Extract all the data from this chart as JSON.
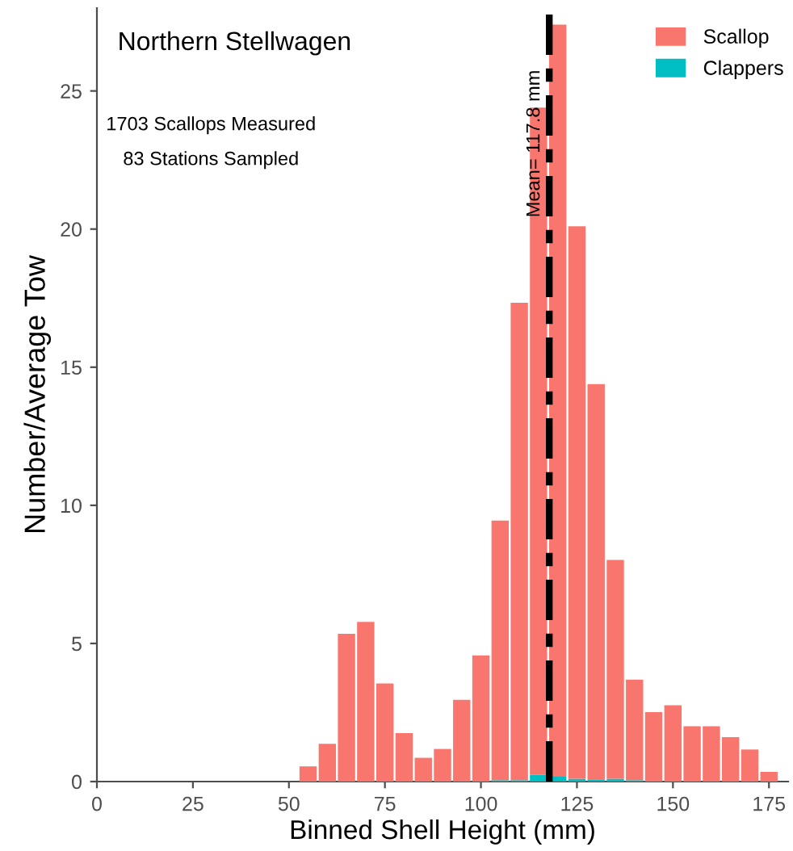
{
  "chart_data": {
    "type": "bar",
    "title": "Northern Stellwagen",
    "xlabel": "Binned Shell Height (mm)",
    "ylabel": "Number/Average Tow",
    "annotations": [
      "1703 Scallops Measured",
      "83 Stations Sampled"
    ],
    "x": [
      55,
      60,
      65,
      70,
      75,
      80,
      85,
      90,
      95,
      100,
      105,
      110,
      115,
      120,
      125,
      130,
      135,
      140,
      145,
      150,
      155,
      160,
      165,
      170,
      175
    ],
    "stacked": true,
    "series": [
      {
        "name": "Clappers",
        "color": "#00bfc4",
        "values": [
          0,
          0,
          0,
          0,
          0,
          0,
          0,
          0,
          0,
          0,
          0.05,
          0.05,
          0.25,
          0.2,
          0.1,
          0.08,
          0.1,
          0.05,
          0,
          0,
          0,
          0,
          0,
          0,
          0
        ]
      },
      {
        "name": "Scallop",
        "color": "#f8766d",
        "values": [
          0.55,
          1.37,
          5.35,
          5.78,
          3.55,
          1.75,
          0.86,
          1.18,
          2.96,
          4.57,
          9.4,
          17.28,
          24.15,
          27.2,
          20.0,
          14.31,
          7.92,
          3.64,
          2.51,
          2.76,
          2.0,
          2.0,
          1.61,
          1.16,
          0.35
        ]
      }
    ],
    "ref_lines": [
      {
        "axis": "x",
        "value": 117.8,
        "label": "Mean= 117.8 mm",
        "color": "#000000",
        "line_style": "dashed"
      }
    ],
    "xlim": [
      0,
      180
    ],
    "xticks": [
      0,
      25,
      50,
      75,
      100,
      125,
      150,
      175
    ],
    "ylim": [
      0,
      28
    ],
    "yticks": [
      0,
      5,
      10,
      15,
      20,
      25
    ],
    "grid": false,
    "legend": "top right"
  }
}
